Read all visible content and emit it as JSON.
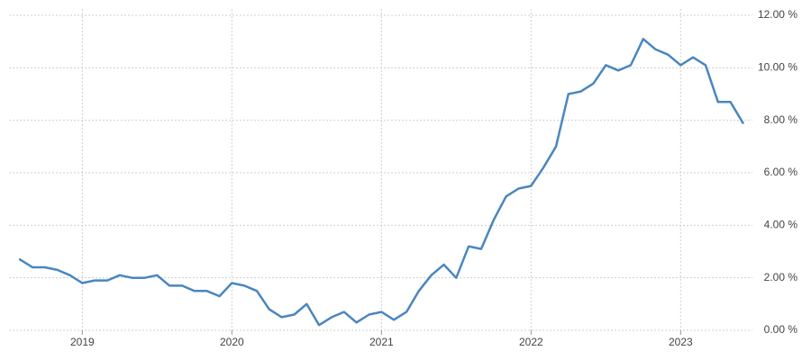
{
  "chart_data": {
    "type": "line",
    "x": [
      2018.583,
      2018.667,
      2018.75,
      2018.833,
      2018.917,
      2019,
      2019.083,
      2019.167,
      2019.25,
      2019.333,
      2019.417,
      2019.5,
      2019.583,
      2019.667,
      2019.75,
      2019.833,
      2019.917,
      2020,
      2020.083,
      2020.167,
      2020.25,
      2020.333,
      2020.417,
      2020.5,
      2020.583,
      2020.667,
      2020.75,
      2020.833,
      2020.917,
      2021,
      2021.083,
      2021.167,
      2021.25,
      2021.333,
      2021.417,
      2021.5,
      2021.583,
      2021.667,
      2021.75,
      2021.833,
      2021.917,
      2022,
      2022.083,
      2022.167,
      2022.25,
      2022.333,
      2022.417,
      2022.5,
      2022.583,
      2022.667,
      2022.75,
      2022.833,
      2022.917,
      2023,
      2023.083,
      2023.167,
      2023.25,
      2023.333,
      2023.417
    ],
    "values": [
      2.7,
      2.4,
      2.4,
      2.3,
      2.1,
      1.8,
      1.9,
      1.9,
      2.1,
      2.0,
      2.0,
      2.1,
      1.7,
      1.7,
      1.5,
      1.5,
      1.3,
      1.8,
      1.7,
      1.5,
      0.8,
      0.5,
      0.6,
      1.0,
      0.2,
      0.5,
      0.7,
      0.3,
      0.6,
      0.7,
      0.4,
      0.7,
      1.5,
      2.1,
      2.5,
      2.0,
      3.2,
      3.1,
      4.2,
      5.1,
      5.4,
      5.5,
      6.2,
      7.0,
      9.0,
      9.1,
      9.4,
      10.1,
      9.9,
      10.1,
      11.1,
      10.7,
      10.5,
      10.1,
      10.4,
      10.1,
      8.7,
      8.7,
      7.9
    ],
    "color": "#4a86c0",
    "xlim": [
      2018.51,
      2023.48
    ],
    "xticks": [
      2019,
      2020,
      2021,
      2022,
      2023
    ],
    "ylim": [
      0,
      12
    ],
    "yticks": [
      {
        "value": 0,
        "label": "0.00 %"
      },
      {
        "value": 2,
        "label": "2.00 %"
      },
      {
        "value": 4,
        "label": "4.00 %"
      },
      {
        "value": 6,
        "label": "6.00 %"
      },
      {
        "value": 8,
        "label": "8.00 %"
      },
      {
        "value": 10,
        "label": "10.00 %"
      },
      {
        "value": 12,
        "label": "12.00 %"
      }
    ],
    "grid": true
  }
}
